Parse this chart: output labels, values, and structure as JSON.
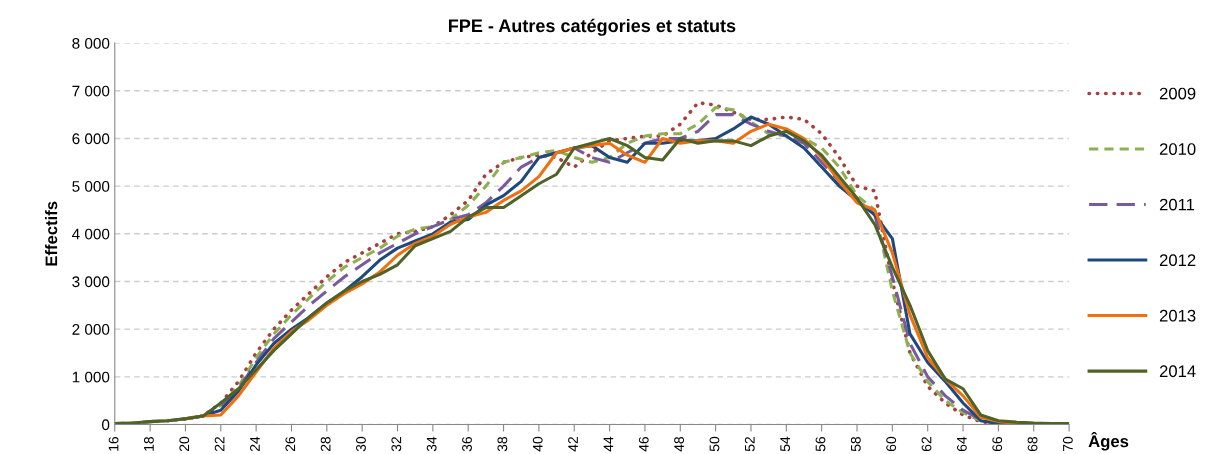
{
  "chart_data": {
    "type": "line",
    "title": "FPE - Autres catégories et statuts",
    "xlabel": "Âges",
    "ylabel": "Effectifs",
    "x": [
      16,
      17,
      18,
      19,
      20,
      21,
      22,
      23,
      24,
      25,
      26,
      27,
      28,
      29,
      30,
      31,
      32,
      33,
      34,
      35,
      36,
      37,
      38,
      39,
      40,
      41,
      42,
      43,
      44,
      45,
      46,
      47,
      48,
      49,
      50,
      51,
      52,
      53,
      54,
      55,
      56,
      57,
      58,
      59,
      60,
      61,
      62,
      63,
      64,
      65,
      66,
      67,
      68,
      69,
      70
    ],
    "xlim": [
      16,
      70
    ],
    "xticks": [
      16,
      18,
      20,
      22,
      24,
      26,
      28,
      30,
      32,
      34,
      36,
      38,
      40,
      42,
      44,
      46,
      48,
      50,
      52,
      54,
      56,
      58,
      60,
      62,
      64,
      66,
      68,
      70
    ],
    "ylim": [
      0,
      8000
    ],
    "yticks": [
      {
        "value": 0,
        "label": "0"
      },
      {
        "value": 1000,
        "label": "1 000"
      },
      {
        "value": 2000,
        "label": "2 000"
      },
      {
        "value": 3000,
        "label": "3 000"
      },
      {
        "value": 4000,
        "label": "4 000"
      },
      {
        "value": 5000,
        "label": "5 000"
      },
      {
        "value": 6000,
        "label": "6 000"
      },
      {
        "value": 7000,
        "label": "7 000"
      },
      {
        "value": 8000,
        "label": "8 000"
      }
    ],
    "grid": "y",
    "legend": "right",
    "marker": "none",
    "series": [
      {
        "name": "2009",
        "color": "#a84040",
        "line_style": "dotted",
        "values": [
          null,
          null,
          null,
          80,
          120,
          180,
          450,
          900,
          1500,
          2000,
          2400,
          2750,
          3100,
          3400,
          3600,
          3800,
          4000,
          4050,
          4150,
          4400,
          4700,
          5250,
          5500,
          5600,
          5650,
          5600,
          5400,
          5700,
          5950,
          6000,
          6050,
          6050,
          6300,
          6750,
          6700,
          6550,
          6400,
          6400,
          6450,
          6400,
          6100,
          5600,
          5000,
          4900,
          3000,
          1500,
          800,
          450,
          200,
          60,
          20,
          10,
          10,
          null,
          null
        ]
      },
      {
        "name": "2010",
        "color": "#8db050",
        "line_style": "dashed",
        "values": [
          20,
          30,
          60,
          80,
          120,
          180,
          400,
          800,
          1400,
          1900,
          2300,
          2650,
          3000,
          3300,
          3500,
          3700,
          3950,
          4100,
          4150,
          4300,
          4600,
          5000,
          5500,
          5600,
          5700,
          5750,
          5600,
          5500,
          5600,
          5900,
          6050,
          6100,
          6100,
          6300,
          6650,
          6600,
          6350,
          6100,
          6050,
          6000,
          5800,
          5400,
          4800,
          4500,
          2800,
          1500,
          900,
          500,
          250,
          80,
          20,
          10,
          10,
          10,
          10
        ]
      },
      {
        "name": "2011",
        "color": "#7a5a9e",
        "line_style": "dashed",
        "values": [
          20,
          30,
          60,
          80,
          120,
          180,
          350,
          750,
          1300,
          1800,
          2150,
          2500,
          2800,
          3100,
          3350,
          3600,
          3800,
          4000,
          4150,
          4300,
          4400,
          4650,
          5000,
          5400,
          5600,
          5700,
          5800,
          5600,
          5500,
          5700,
          5900,
          6000,
          6000,
          6150,
          6500,
          6500,
          6300,
          6150,
          6050,
          5900,
          5500,
          5100,
          4700,
          4400,
          3100,
          1700,
          1000,
          600,
          300,
          100,
          30,
          10,
          10,
          10,
          10
        ]
      },
      {
        "name": "2012",
        "color": "#1f497d",
        "line_style": "solid",
        "values": [
          null,
          null,
          null,
          null,
          120,
          180,
          300,
          700,
          1250,
          1700,
          2000,
          2250,
          2550,
          2800,
          3100,
          3450,
          3700,
          3850,
          4000,
          4250,
          4300,
          4600,
          4800,
          5100,
          5600,
          5700,
          5800,
          5850,
          5600,
          5500,
          5900,
          5900,
          5950,
          5950,
          6000,
          6200,
          6450,
          6300,
          6050,
          5800,
          5400,
          5000,
          4700,
          4400,
          3900,
          1900,
          1300,
          900,
          450,
          80,
          20,
          10,
          10,
          null,
          null
        ]
      },
      {
        "name": "2013",
        "color": "#f07010",
        "line_style": "solid",
        "values": [
          null,
          null,
          null,
          null,
          120,
          180,
          200,
          600,
          1100,
          1600,
          1950,
          2200,
          2500,
          2750,
          2950,
          3200,
          3550,
          3800,
          3950,
          4200,
          4350,
          4450,
          4700,
          4900,
          5200,
          5700,
          5800,
          5850,
          5900,
          5650,
          5500,
          6000,
          5900,
          5950,
          5950,
          5900,
          6150,
          6300,
          6200,
          6000,
          5600,
          5100,
          4650,
          4500,
          3600,
          2300,
          1400,
          950,
          600,
          150,
          60,
          30,
          20,
          null,
          null
        ]
      },
      {
        "name": "2014",
        "color": "#4f6228",
        "line_style": "solid",
        "values": [
          20,
          30,
          60,
          80,
          120,
          180,
          450,
          750,
          1150,
          1550,
          1900,
          2250,
          2550,
          2800,
          3000,
          3150,
          3350,
          3750,
          3900,
          4050,
          4350,
          4550,
          4550,
          4800,
          5050,
          5250,
          5800,
          5900,
          6000,
          5850,
          5600,
          5550,
          6000,
          5900,
          5950,
          5950,
          5850,
          6050,
          6150,
          5950,
          5650,
          5200,
          4750,
          4200,
          3300,
          2500,
          1550,
          950,
          750,
          200,
          80,
          50,
          30,
          20,
          20
        ]
      }
    ]
  }
}
